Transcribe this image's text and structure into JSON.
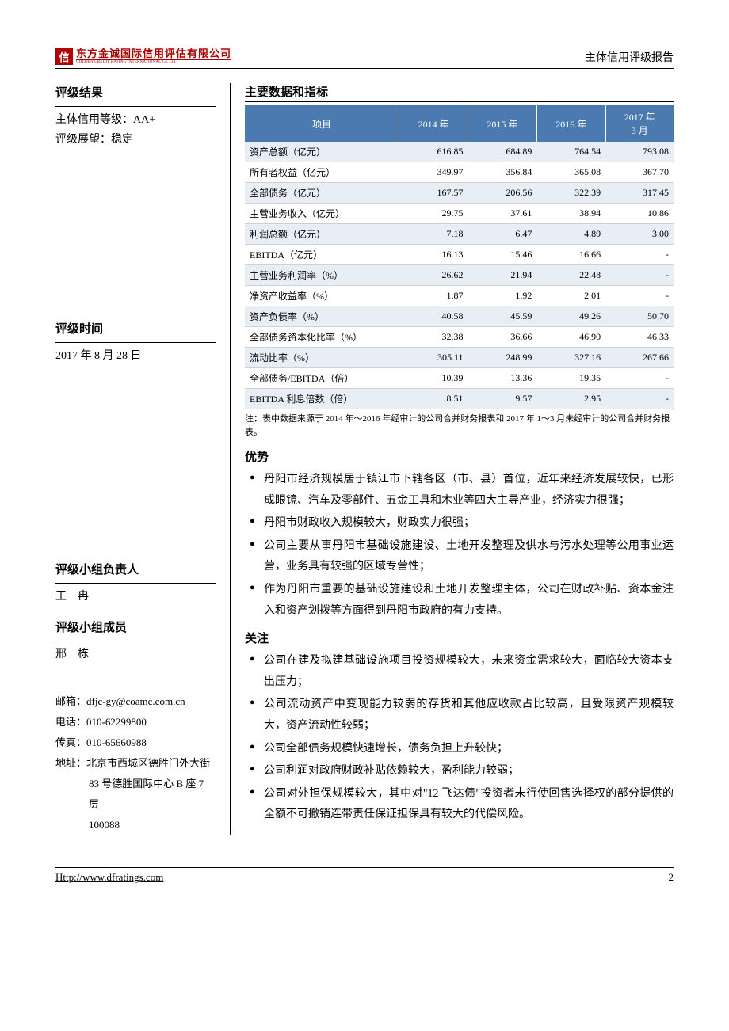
{
  "header": {
    "logo_mark": "信",
    "logo_cn": "东方金诚国际信用评估有限公司",
    "logo_en": "GOLDEN CREDIT RATING INTERNATIONAL Co.,Ltd.",
    "doc_type": "主体信用评级报告"
  },
  "left": {
    "result_title": "评级结果",
    "rating_line": "主体信用等级：AA+",
    "outlook_line": "评级展望：稳定",
    "time_title": "评级时间",
    "time_value": "2017 年 8 月 28 日",
    "leader_title": "评级小组负责人",
    "leader_value": "王　冉",
    "member_title": "评级小组成员",
    "member_value": "邢　栋",
    "email": "邮箱：dfjc-gy@coamc.com.cn",
    "phone": "电话：010-62299800",
    "fax": "传真：010-65660988",
    "address_label": "地址：",
    "address_l1": "北京市西城区德胜门外大街",
    "address_l2": "83 号德胜国际中心 B 座 7 层",
    "address_l3": "100088"
  },
  "table": {
    "title": "主要数据和指标",
    "header_bg": "#4a7ab0",
    "header_fg": "#ffffff",
    "row_odd_bg": "#e8eef5",
    "row_even_bg": "#ffffff",
    "border_color": "#d0d0d0",
    "columns": [
      "项目",
      "2014 年",
      "2015 年",
      "2016 年",
      "2017 年\n3 月"
    ],
    "rows": [
      [
        "资产总额（亿元）",
        "616.85",
        "684.89",
        "764.54",
        "793.08"
      ],
      [
        "所有者权益（亿元）",
        "349.97",
        "356.84",
        "365.08",
        "367.70"
      ],
      [
        "全部债务（亿元）",
        "167.57",
        "206.56",
        "322.39",
        "317.45"
      ],
      [
        "主营业务收入（亿元）",
        "29.75",
        "37.61",
        "38.94",
        "10.86"
      ],
      [
        "利润总额（亿元）",
        "7.18",
        "6.47",
        "4.89",
        "3.00"
      ],
      [
        "EBITDA（亿元）",
        "16.13",
        "15.46",
        "16.66",
        "-"
      ],
      [
        "主营业务利润率（%）",
        "26.62",
        "21.94",
        "22.48",
        "-"
      ],
      [
        "净资产收益率（%）",
        "1.87",
        "1.92",
        "2.01",
        "-"
      ],
      [
        "资产负债率（%）",
        "40.58",
        "45.59",
        "49.26",
        "50.70"
      ],
      [
        "全部债务资本化比率（%）",
        "32.38",
        "36.66",
        "46.90",
        "46.33"
      ],
      [
        "流动比率（%）",
        "305.11",
        "248.99",
        "327.16",
        "267.66"
      ],
      [
        "全部债务/EBITDA（倍）",
        "10.39",
        "13.36",
        "19.35",
        "-"
      ],
      [
        "EBITDA 利息倍数（倍）",
        "8.51",
        "9.57",
        "2.95",
        "-"
      ]
    ],
    "note": "注：表中数据来源于 2014 年～2016 年经审计的公司合并财务报表和 2017 年 1～3 月未经审计的公司合并财务报表。"
  },
  "strengths": {
    "title": "优势",
    "items": [
      "丹阳市经济规模居于镇江市下辖各区（市、县）首位，近年来经济发展较快，已形成眼镜、汽车及零部件、五金工具和木业等四大主导产业，经济实力很强；",
      "丹阳市财政收入规模较大，财政实力很强；",
      "公司主要从事丹阳市基础设施建设、土地开发整理及供水与污水处理等公用事业运营，业务具有较强的区域专营性；",
      "作为丹阳市重要的基础设施建设和土地开发整理主体，公司在财政补贴、资本金注入和资产划拨等方面得到丹阳市政府的有力支持。"
    ]
  },
  "concerns": {
    "title": "关注",
    "items": [
      "公司在建及拟建基础设施项目投资规模较大，未来资金需求较大，面临较大资本支出压力；",
      "公司流动资产中变现能力较弱的存货和其他应收款占比较高，且受限资产规模较大，资产流动性较弱；",
      "公司全部债务规模快速增长，债务负担上升较快；",
      "公司利润对政府财政补贴依赖较大，盈利能力较弱；",
      "公司对外担保规模较大，其中对\"12 飞达债\"投资者未行使回售选择权的部分提供的全额不可撤销连带责任保证担保具有较大的代偿风险。"
    ]
  },
  "footer": {
    "url": "Http://www.dfratings.com",
    "page": "2"
  }
}
